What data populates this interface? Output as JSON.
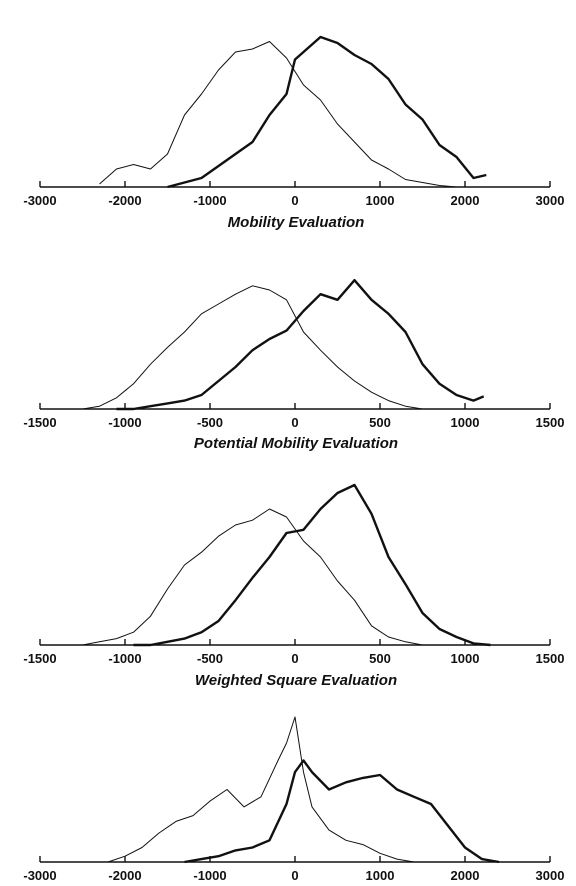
{
  "chart_data": [
    {
      "type": "line",
      "title": "Mobility Evaluation",
      "xlim": [
        -3000,
        3000
      ],
      "xticks": [
        "-3000",
        "-2000",
        "-1000",
        "0",
        "1000",
        "2000",
        "3000"
      ],
      "series": [
        {
          "style": "thin",
          "x": [
            -2300,
            -2100,
            -1900,
            -1700,
            -1500,
            -1300,
            -1100,
            -900,
            -700,
            -500,
            -300,
            -100,
            100,
            300,
            500,
            700,
            900,
            1100,
            1300,
            1500,
            1700,
            1900
          ],
          "y": [
            0.02,
            0.12,
            0.15,
            0.12,
            0.22,
            0.48,
            0.62,
            0.78,
            0.9,
            0.92,
            0.97,
            0.86,
            0.68,
            0.58,
            0.42,
            0.3,
            0.18,
            0.12,
            0.05,
            0.03,
            0.01,
            0.0
          ]
        },
        {
          "style": "thick",
          "x": [
            -1500,
            -1300,
            -1100,
            -900,
            -700,
            -500,
            -300,
            -100,
            0,
            100,
            300,
            500,
            700,
            900,
            1100,
            1300,
            1500,
            1700,
            1900,
            2100,
            2250
          ],
          "y": [
            0.0,
            0.03,
            0.06,
            0.14,
            0.22,
            0.3,
            0.48,
            0.62,
            0.85,
            0.9,
            1.0,
            0.96,
            0.88,
            0.82,
            0.72,
            0.55,
            0.45,
            0.28,
            0.2,
            0.06,
            0.08
          ]
        }
      ]
    },
    {
      "type": "line",
      "title": "Potential Mobility Evaluation",
      "xlim": [
        -1500,
        1500
      ],
      "xticks": [
        "-1500",
        "-1000",
        "-500",
        "0",
        "500",
        "1000",
        "1500"
      ],
      "series": [
        {
          "style": "thin",
          "x": [
            -1250,
            -1150,
            -1050,
            -950,
            -850,
            -750,
            -650,
            -550,
            -450,
            -350,
            -250,
            -150,
            -50,
            50,
            150,
            250,
            350,
            450,
            550,
            650,
            750,
            850
          ],
          "y": [
            0.0,
            0.02,
            0.08,
            0.18,
            0.32,
            0.44,
            0.55,
            0.68,
            0.75,
            0.82,
            0.88,
            0.85,
            0.78,
            0.55,
            0.42,
            0.3,
            0.2,
            0.12,
            0.06,
            0.02,
            0.0,
            0.0
          ]
        },
        {
          "style": "thick",
          "x": [
            -1050,
            -950,
            -850,
            -750,
            -650,
            -550,
            -450,
            -350,
            -250,
            -150,
            -50,
            50,
            150,
            250,
            350,
            450,
            550,
            650,
            750,
            850,
            950,
            1050,
            1110
          ],
          "y": [
            0.0,
            0.0,
            0.02,
            0.04,
            0.06,
            0.1,
            0.2,
            0.3,
            0.42,
            0.5,
            0.56,
            0.7,
            0.82,
            0.78,
            0.92,
            0.78,
            0.68,
            0.55,
            0.32,
            0.18,
            0.1,
            0.06,
            0.09
          ]
        }
      ]
    },
    {
      "type": "line",
      "title": "Weighted Square Evaluation",
      "xlim": [
        -1500,
        1500
      ],
      "xticks": [
        "-1500",
        "-1000",
        "-500",
        "0",
        "500",
        "1000",
        "1500"
      ],
      "series": [
        {
          "style": "thin",
          "x": [
            -1250,
            -1150,
            -1050,
            -950,
            -850,
            -750,
            -650,
            -550,
            -450,
            -350,
            -250,
            -150,
            -50,
            50,
            150,
            250,
            350,
            450,
            550,
            650,
            750,
            850
          ],
          "y": [
            0.0,
            0.02,
            0.04,
            0.08,
            0.18,
            0.35,
            0.5,
            0.58,
            0.68,
            0.75,
            0.78,
            0.85,
            0.8,
            0.65,
            0.55,
            0.4,
            0.28,
            0.12,
            0.05,
            0.02,
            0.0,
            0.0
          ]
        },
        {
          "style": "thick",
          "x": [
            -950,
            -850,
            -750,
            -650,
            -550,
            -450,
            -350,
            -250,
            -150,
            -50,
            50,
            150,
            250,
            350,
            450,
            550,
            650,
            750,
            850,
            950,
            1050,
            1150
          ],
          "y": [
            0.0,
            0.0,
            0.02,
            0.04,
            0.08,
            0.15,
            0.28,
            0.42,
            0.55,
            0.7,
            0.72,
            0.85,
            0.95,
            1.0,
            0.82,
            0.55,
            0.38,
            0.2,
            0.1,
            0.05,
            0.01,
            0.0
          ]
        }
      ]
    },
    {
      "type": "line",
      "title": "",
      "xlim": [
        -3000,
        3000
      ],
      "xticks": [
        "-3000",
        "-2000",
        "-1000",
        "0",
        "1000",
        "2000",
        "3000"
      ],
      "series": [
        {
          "style": "thin",
          "x": [
            -2200,
            -2000,
            -1800,
            -1600,
            -1400,
            -1200,
            -1000,
            -800,
            -600,
            -400,
            -200,
            -100,
            0,
            100,
            200,
            400,
            600,
            800,
            1000,
            1200,
            1400,
            1600
          ],
          "y": [
            0.0,
            0.04,
            0.1,
            0.2,
            0.28,
            0.32,
            0.42,
            0.5,
            0.38,
            0.45,
            0.7,
            0.82,
            1.0,
            0.62,
            0.38,
            0.22,
            0.15,
            0.12,
            0.06,
            0.02,
            0.0,
            0.0
          ]
        },
        {
          "style": "thick",
          "x": [
            -1300,
            -1100,
            -900,
            -700,
            -500,
            -300,
            -100,
            0,
            100,
            200,
            400,
            600,
            800,
            1000,
            1200,
            1400,
            1600,
            1800,
            2000,
            2200,
            2400
          ],
          "y": [
            0.0,
            0.02,
            0.04,
            0.08,
            0.1,
            0.15,
            0.4,
            0.62,
            0.7,
            0.62,
            0.5,
            0.55,
            0.58,
            0.6,
            0.5,
            0.45,
            0.4,
            0.25,
            0.1,
            0.02,
            0.0
          ]
        }
      ]
    }
  ]
}
